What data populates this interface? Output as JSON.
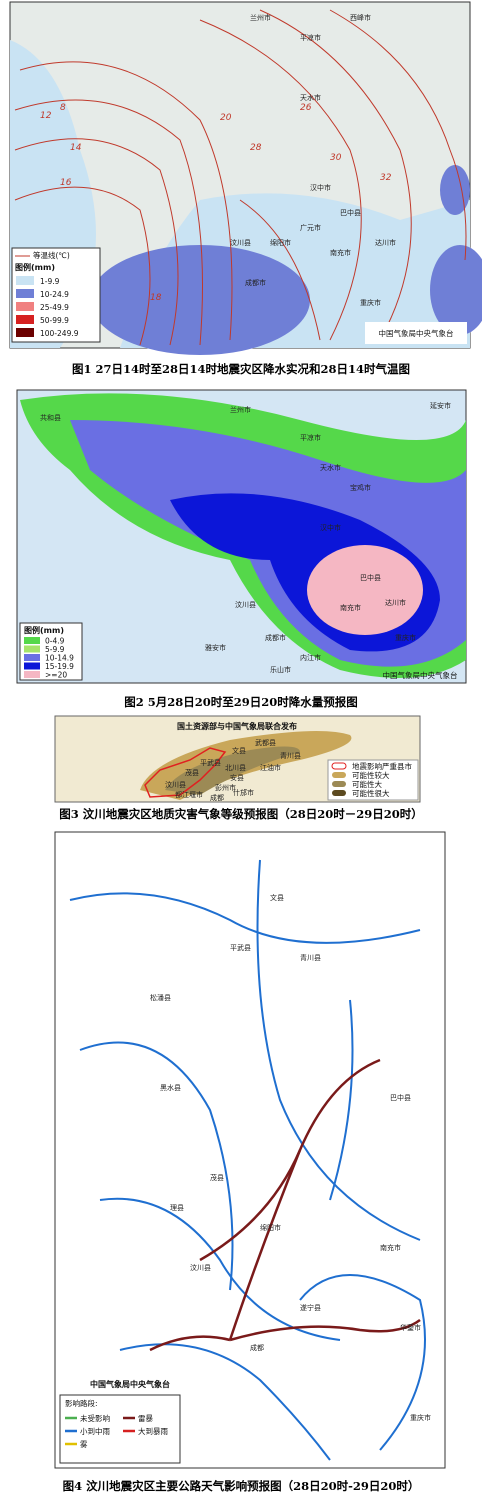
{
  "figure1": {
    "isotherm_labels": [
      "8",
      "12",
      "14",
      "16",
      "18",
      "20",
      "26",
      "28",
      "30",
      "32"
    ],
    "places": [
      "兰州市",
      "西峰市",
      "平凉市",
      "天水市",
      "汉中市",
      "广元市",
      "绵阳市",
      "汶川县",
      "成都市",
      "南充市",
      "达川市",
      "重庆市",
      "巴中县"
    ],
    "legend": {
      "isotherm": "等温线(℃)",
      "title": "图例(mm)",
      "items": [
        "1-9.9",
        "10-24.9",
        "25-49.9",
        "50-99.9",
        "100-249.9"
      ]
    },
    "credit": "中国气象局中央气象台",
    "caption": "图1 27日14时至28日14时地震灾区降水实况和28日14时气温图"
  },
  "figure2": {
    "places": [
      "共和县",
      "兰州市",
      "平凉市",
      "延安市",
      "天水市",
      "宝鸡市",
      "汉中市",
      "巴中县",
      "达川市",
      "南充市",
      "汶川县",
      "成都市",
      "雅安市",
      "乐山市",
      "重庆市",
      "内江市"
    ],
    "legend": {
      "title": "图例(mm)",
      "items": [
        "0-4.9",
        "5-9.9",
        "10-14.9",
        "15-19.9",
        ">=20"
      ]
    },
    "credit": "中国气象局中央气象台",
    "caption": "图2 5月28日20时至29日20时降水量预报图"
  },
  "figure3": {
    "header": "国土资源部与中国气象局联合发布",
    "places": [
      "武都县",
      "文县",
      "青川县",
      "平武县",
      "北川县",
      "茂县",
      "江油市",
      "安县",
      "汶川县",
      "彭州市",
      "都江堰市",
      "什邡市",
      "成都"
    ],
    "legend": [
      "地震影响严重县市",
      "可能性较大",
      "可能性大",
      "可能性很大"
    ],
    "caption": "图3 汶川地震灾区地质灾害气象等级预报图（28日20时－29日20时）"
  },
  "figure4": {
    "places": [
      "文县",
      "平武县",
      "青川县",
      "松潘县",
      "黑水县",
      "茂县",
      "理县",
      "汶川县",
      "绵阳市",
      "成都",
      "南充市",
      "巴中县",
      "遂宁县",
      "华蓥市",
      "重庆市"
    ],
    "credit": "中国气象局中央气象台",
    "legend": {
      "title": "影响路段:",
      "items": [
        "未受影响",
        "小到中雨",
        "雾",
        "雷暴",
        "大到暴雨"
      ]
    },
    "caption": "图4 汶川地震灾区主要公路天气影响预报图（28日20时-29日20时）"
  }
}
